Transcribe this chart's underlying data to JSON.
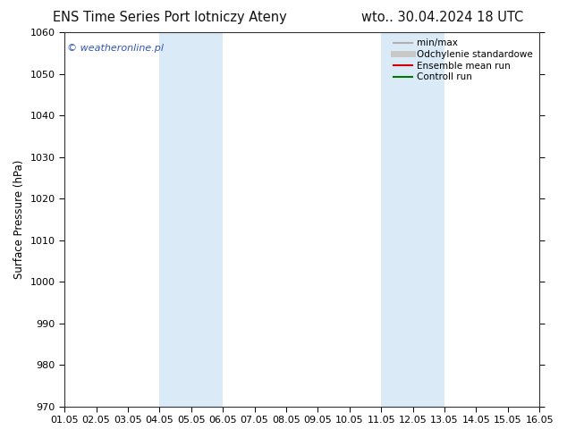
{
  "title_left": "ENS Time Series Port lotniczy Ateny",
  "title_right": "wto.. 30.04.2024 18 UTC",
  "ylabel": "Surface Pressure (hPa)",
  "ylim": [
    970,
    1060
  ],
  "yticks": [
    970,
    980,
    990,
    1000,
    1010,
    1020,
    1030,
    1040,
    1050,
    1060
  ],
  "xlim_start": 0,
  "xlim_end": 15,
  "xtick_labels": [
    "01.05",
    "02.05",
    "03.05",
    "04.05",
    "05.05",
    "06.05",
    "07.05",
    "08.05",
    "09.05",
    "10.05",
    "11.05",
    "12.05",
    "13.05",
    "14.05",
    "15.05",
    "16.05"
  ],
  "shaded_bands": [
    {
      "xmin": 3,
      "xmax": 4,
      "color": "#daeaf7"
    },
    {
      "xmin": 4,
      "xmax": 5,
      "color": "#daeaf7"
    },
    {
      "xmin": 10,
      "xmax": 11,
      "color": "#daeaf7"
    },
    {
      "xmin": 11,
      "xmax": 12,
      "color": "#daeaf7"
    }
  ],
  "legend_entries": [
    {
      "label": "min/max",
      "color": "#b0b0b0",
      "lw": 1.5,
      "style": "-"
    },
    {
      "label": "Odchylenie standardowe",
      "color": "#c8c8c8",
      "lw": 5,
      "style": "-"
    },
    {
      "label": "Ensemble mean run",
      "color": "#cc0000",
      "lw": 1.5,
      "style": "-"
    },
    {
      "label": "Controll run",
      "color": "#007700",
      "lw": 1.5,
      "style": "-"
    }
  ],
  "watermark": "© weatheronline.pl",
  "watermark_color": "#3355bb",
  "background_color": "#ffffff",
  "axes_bg_color": "#ffffff",
  "title_fontsize": 10.5,
  "label_fontsize": 8.5,
  "tick_fontsize": 8,
  "legend_fontsize": 7.5
}
